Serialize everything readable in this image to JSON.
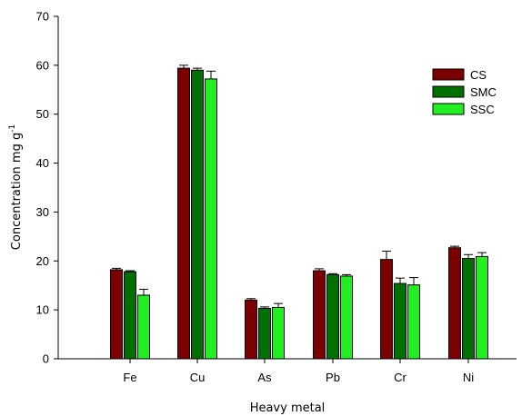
{
  "chart_data": {
    "type": "bar",
    "title": "",
    "xlabel": "Heavy metal",
    "ylabel": "Concentration mg g",
    "ylabel_superscript": "-1",
    "ylim": [
      0,
      70
    ],
    "yticks": [
      0,
      10,
      20,
      30,
      40,
      50,
      60,
      70
    ],
    "categories": [
      "Fe",
      "Cu",
      "As",
      "Pb",
      "Cr",
      "Ni"
    ],
    "legend_position": "top-right",
    "error_bars": true,
    "series": [
      {
        "name": "CS",
        "color": "#7b0000",
        "values": [
          18.2,
          59.4,
          12.0,
          18.0,
          20.3,
          22.7
        ],
        "errors": [
          0.3,
          0.6,
          0.3,
          0.4,
          1.7,
          0.3
        ]
      },
      {
        "name": "SMC",
        "color": "#007000",
        "values": [
          17.8,
          59.0,
          10.3,
          17.2,
          15.4,
          20.5
        ],
        "errors": [
          0.2,
          0.4,
          0.3,
          0.2,
          1.1,
          0.8
        ]
      },
      {
        "name": "SSC",
        "color": "#22ee22",
        "values": [
          13.0,
          57.2,
          10.5,
          16.9,
          15.1,
          20.9
        ],
        "errors": [
          1.2,
          1.6,
          0.8,
          0.3,
          1.5,
          0.8
        ]
      }
    ]
  }
}
